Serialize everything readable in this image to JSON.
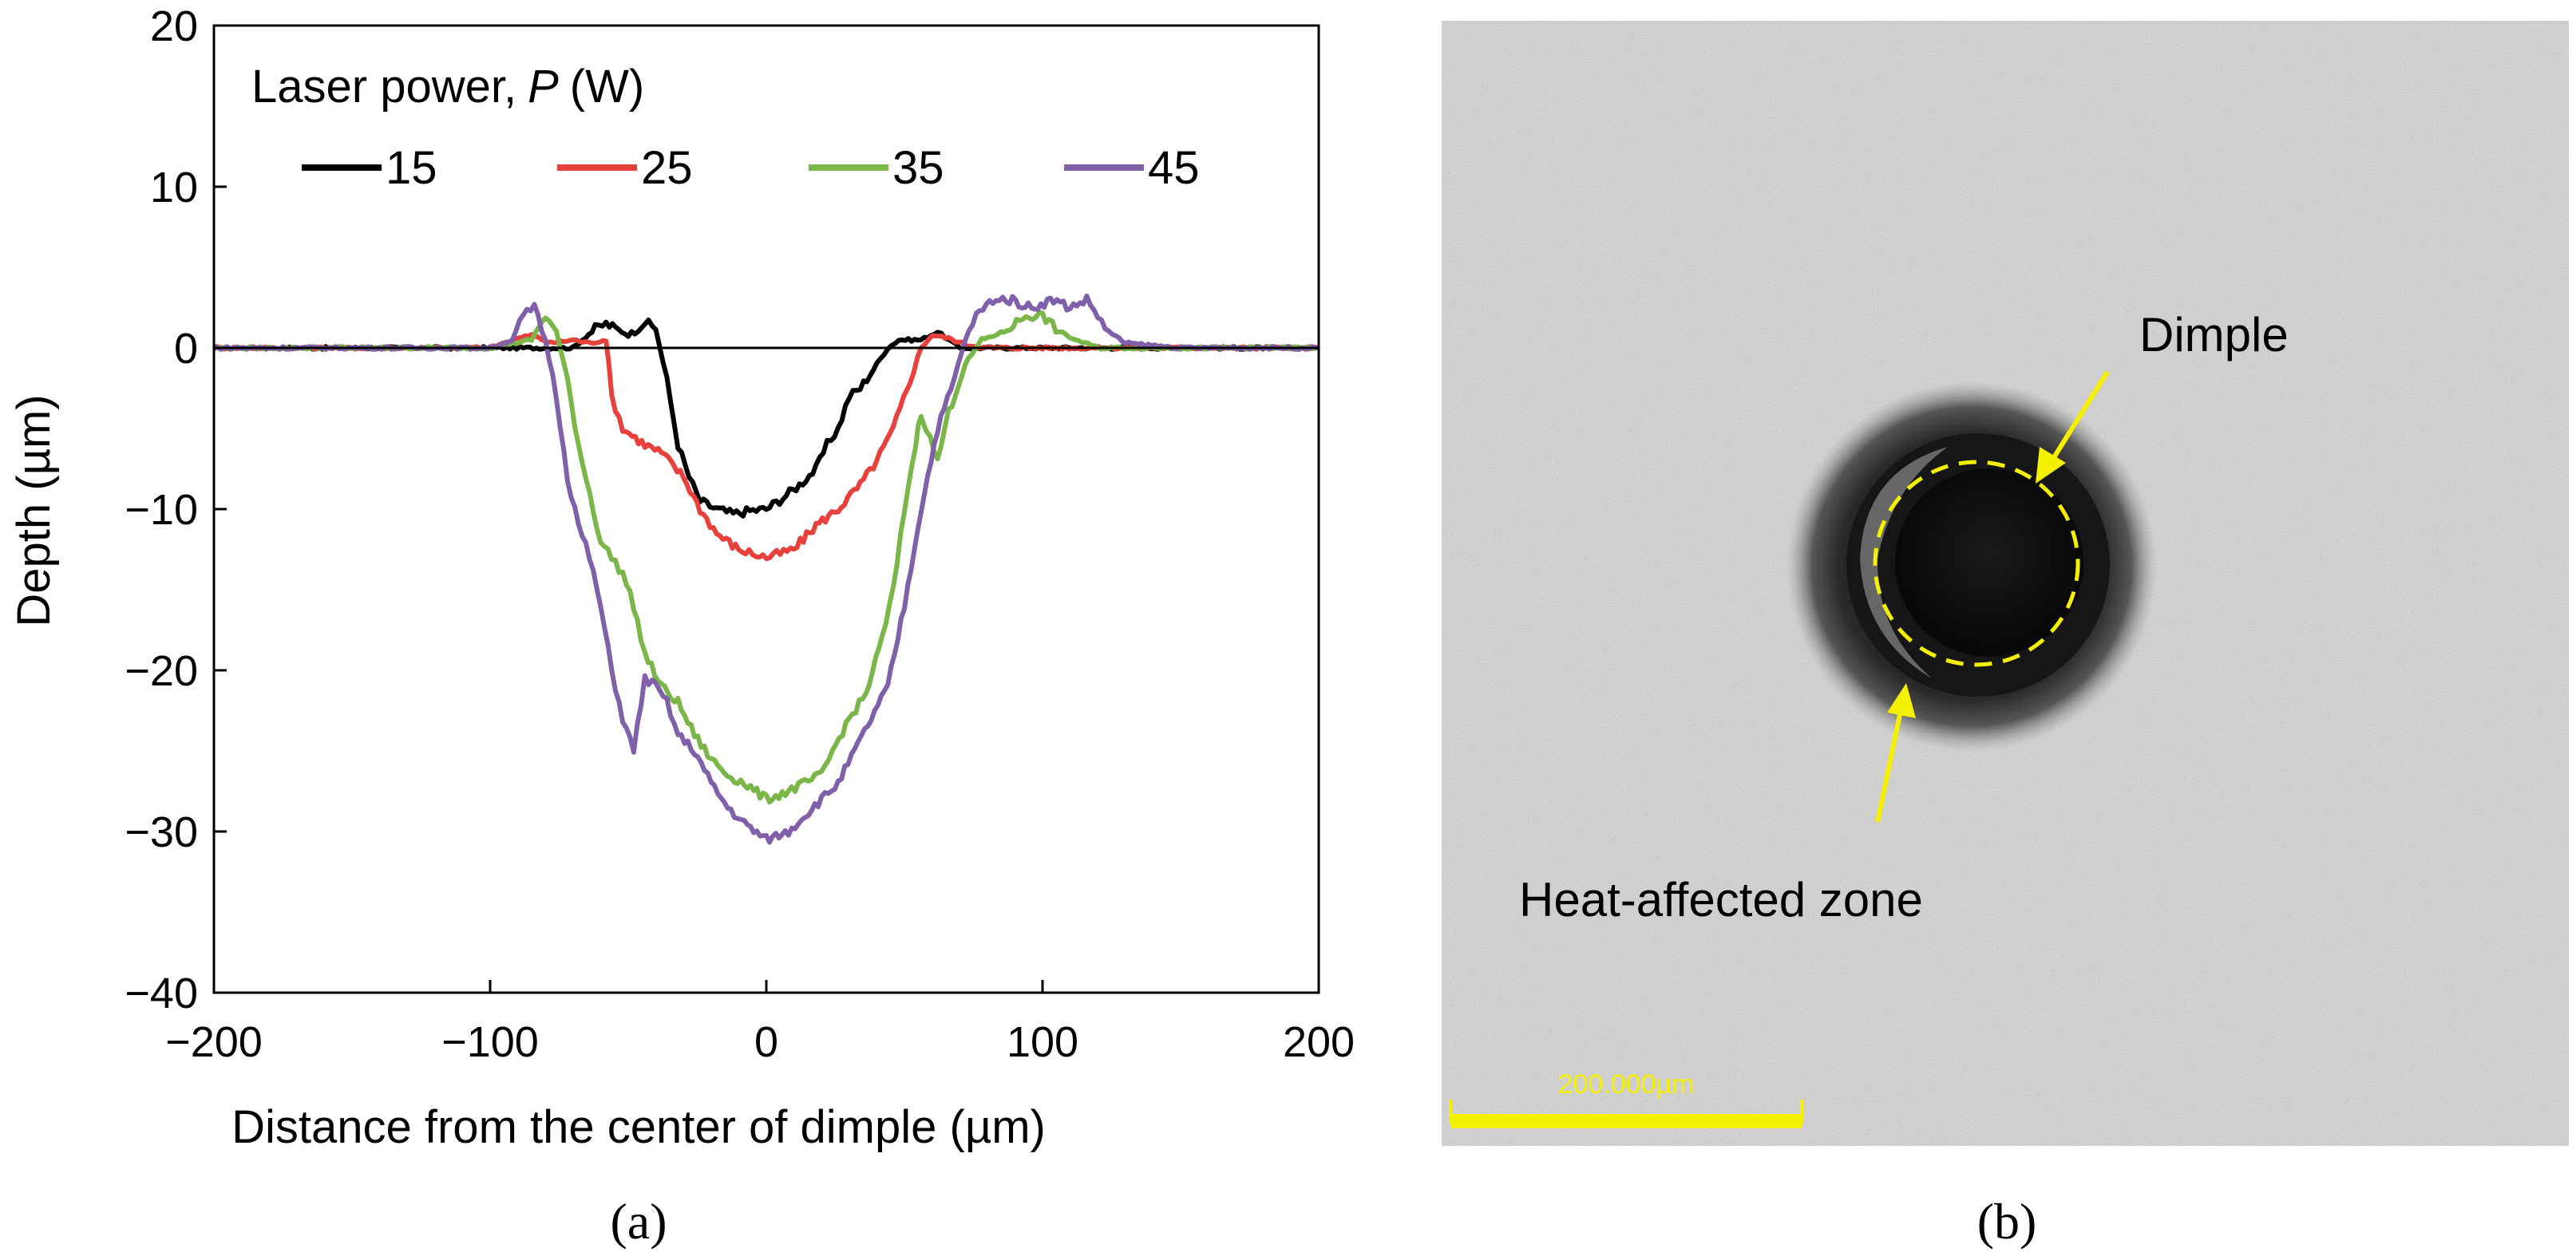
{
  "chart_data": {
    "type": "line",
    "panel_label": "(a)",
    "xlabel": "Distance from the center of dimple (µm)",
    "ylabel": "Depth (µm)",
    "xlim": [
      -200,
      200
    ],
    "ylim": [
      -40,
      20
    ],
    "x_ticks": [
      -200,
      -100,
      0,
      100,
      200
    ],
    "x_tick_labels": [
      "−200",
      "−100",
      "0",
      "100",
      "200"
    ],
    "y_ticks": [
      20,
      10,
      0,
      -10,
      -20,
      -30,
      -40
    ],
    "y_tick_labels": [
      "20",
      "10",
      "0",
      "−10",
      "−20",
      "−30",
      "−40"
    ],
    "legend_title_prefix": "Laser power,",
    "legend_title_var": "P",
    "legend_title_unit": "(W)",
    "legend_placement": "top-left",
    "series": [
      {
        "name": "15",
        "color": "#000000",
        "x": [
          -200,
          -150,
          -100,
          -70,
          -62,
          -58,
          -50,
          -44,
          -40,
          -36,
          -32,
          -28,
          -24,
          -18,
          -12,
          -6,
          0,
          6,
          12,
          18,
          22,
          26,
          30,
          34,
          40,
          44,
          48,
          56,
          62,
          66,
          70,
          80,
          100,
          150,
          200
        ],
        "y": [
          0,
          0,
          0,
          0,
          1.2,
          1.5,
          0.8,
          1.6,
          1.2,
          -2,
          -6,
          -8,
          -9.5,
          -10,
          -10.3,
          -10.1,
          -10,
          -9.3,
          -8.5,
          -7.5,
          -6,
          -5,
          -3,
          -2.5,
          -1,
          0,
          0.5,
          0.5,
          1,
          0.5,
          0,
          0,
          0,
          0,
          0
        ]
      },
      {
        "name": "25",
        "color": "#e8413c",
        "x": [
          -200,
          -150,
          -100,
          -92,
          -85,
          -78,
          -70,
          -64,
          -58,
          -56,
          -52,
          -44,
          -38,
          -30,
          -24,
          -18,
          -10,
          0,
          10,
          18,
          26,
          34,
          40,
          46,
          52,
          56,
          60,
          66,
          72,
          80,
          100,
          150,
          200
        ],
        "y": [
          0,
          0,
          0,
          0.5,
          0.8,
          0.3,
          0.5,
          0.3,
          0.5,
          -3,
          -5,
          -6,
          -6.5,
          -8,
          -10,
          -11.5,
          -12.5,
          -13,
          -12.5,
          -11,
          -10,
          -8.5,
          -7,
          -5,
          -2,
          0,
          0.8,
          0.6,
          0.2,
          0,
          0,
          0,
          0
        ]
      },
      {
        "name": "35",
        "color": "#7ab648",
        "x": [
          -200,
          -150,
          -100,
          -85,
          -80,
          -76,
          -72,
          -68,
          -64,
          -60,
          -56,
          -52,
          -48,
          -44,
          -38,
          -32,
          -26,
          -20,
          -14,
          -8,
          0,
          8,
          14,
          20,
          24,
          30,
          36,
          42,
          46,
          50,
          54,
          56,
          58,
          62,
          66,
          72,
          78,
          86,
          94,
          100,
          106,
          112,
          120,
          150,
          200
        ],
        "y": [
          0,
          0,
          0,
          0.5,
          2,
          1,
          -2,
          -6,
          -9,
          -12,
          -13,
          -14,
          -16,
          -19,
          -21,
          -22,
          -24,
          -25.5,
          -26.5,
          -27,
          -28,
          -27.5,
          -27,
          -26.5,
          -25,
          -23,
          -21.5,
          -18,
          -15,
          -10,
          -6,
          -4,
          -5,
          -7,
          -4,
          -1,
          0.5,
          1,
          2,
          2,
          1,
          0.5,
          0,
          0,
          0
        ]
      },
      {
        "name": "45",
        "color": "#8060a8",
        "x": [
          -200,
          -150,
          -100,
          -92,
          -88,
          -84,
          -80,
          -76,
          -72,
          -68,
          -64,
          -60,
          -56,
          -52,
          -48,
          -44,
          -40,
          -36,
          -32,
          -26,
          -20,
          -14,
          -8,
          0,
          8,
          14,
          20,
          26,
          32,
          38,
          44,
          50,
          56,
          62,
          68,
          72,
          76,
          82,
          88,
          96,
          104,
          110,
          116,
          120,
          124,
          130,
          150,
          200
        ],
        "y": [
          0,
          0,
          0,
          0.5,
          2,
          2.5,
          0.5,
          -3,
          -8,
          -11,
          -13,
          -16,
          -20,
          -23,
          -25,
          -20.5,
          -21,
          -22,
          -24,
          -25,
          -27,
          -28.5,
          -29.5,
          -30.5,
          -30,
          -29,
          -28,
          -27,
          -25,
          -23,
          -21,
          -16,
          -10,
          -5,
          -2,
          0.5,
          2,
          3,
          3,
          2.5,
          3,
          2.5,
          3,
          2,
          1,
          0.3,
          0,
          0
        ]
      }
    ]
  },
  "micrograph": {
    "panel_label": "(b)",
    "dimple_label": "Dimple",
    "haz_label": "Heat-affected zone",
    "scale_bar_label": "200.000µm",
    "annotation_color": "#f5ef00"
  }
}
